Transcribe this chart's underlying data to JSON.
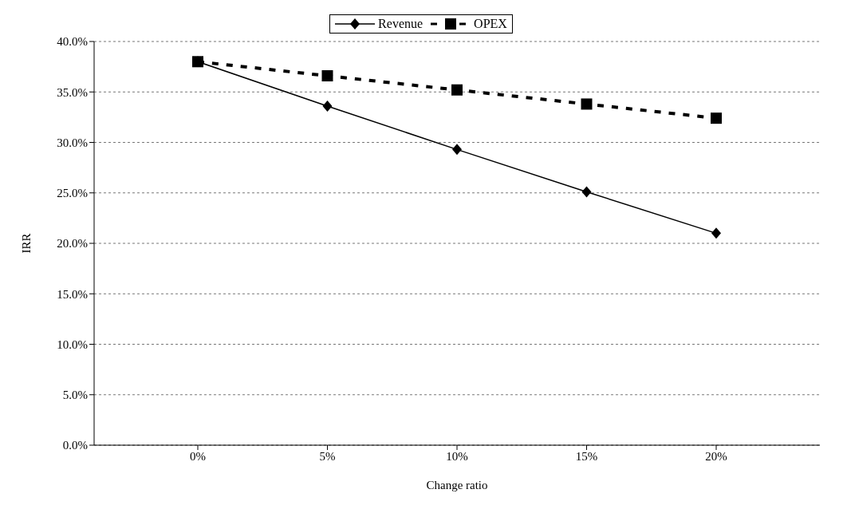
{
  "chart_data": {
    "type": "line",
    "xlabel": "Change ratio",
    "ylabel": "IRR",
    "categories": [
      "0%",
      "5%",
      "10%",
      "15%",
      "20%"
    ],
    "series": [
      {
        "name": "Revenue",
        "color": "#000000",
        "values": [
          38.0,
          33.6,
          29.3,
          25.1,
          21.0
        ],
        "marker": "diamond",
        "line_style": "solid"
      },
      {
        "name": "OPEX",
        "color": "#000000",
        "values": [
          38.0,
          36.6,
          35.2,
          33.8,
          32.4
        ],
        "marker": "square",
        "line_style": "dashed"
      }
    ],
    "ylim": [
      0,
      40
    ],
    "yticks": [
      {
        "value": 0,
        "label": "0.0%"
      },
      {
        "value": 5,
        "label": "5.0%"
      },
      {
        "value": 10,
        "label": "10.0%"
      },
      {
        "value": 15,
        "label": "15.0%"
      },
      {
        "value": 20,
        "label": "20.0%"
      },
      {
        "value": 25,
        "label": "25.0%"
      },
      {
        "value": 30,
        "label": "30.0%"
      },
      {
        "value": 35,
        "label": "35.0%"
      },
      {
        "value": 40,
        "label": "40.0%"
      }
    ],
    "grid": "y",
    "legend": "top"
  }
}
